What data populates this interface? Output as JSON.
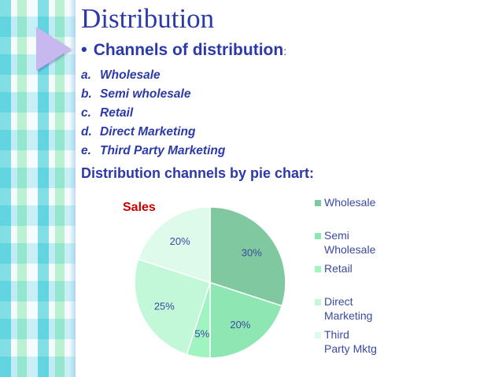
{
  "title": "Distribution",
  "subheading": {
    "bullet": "•",
    "text": "Channels of distribution",
    "suffix": ":"
  },
  "channels": [
    {
      "mark": "a.",
      "label": "Wholesale"
    },
    {
      "mark": "b.",
      "label": "Semi wholesale"
    },
    {
      "mark": "c.",
      "label": "Retail"
    },
    {
      "mark": "d.",
      "label": "Direct Marketing"
    },
    {
      "mark": "e.",
      "label": "Third Party Marketing"
    }
  ],
  "pie_heading": "Distribution channels by pie chart:",
  "colors": {
    "text_blue": "#2b3aa8",
    "chart_title_red": "#cc0000",
    "label_blue": "#3a4aa0",
    "slice_border": "#ffffff"
  },
  "chart_data": {
    "type": "pie",
    "title": "Sales",
    "legend_position": "right",
    "slices": [
      {
        "name": "Wholesale",
        "legend_lines": [
          "Wholesale"
        ],
        "value": 30,
        "label": "30%",
        "color": "#80c8a0"
      },
      {
        "name": "Semi Wholesale",
        "legend_lines": [
          "Semi",
          "Wholesale"
        ],
        "value": 20,
        "label": "20%",
        "color": "#8ee6b2"
      },
      {
        "name": "Retail",
        "legend_lines": [
          "Retail"
        ],
        "value": 5,
        "label": "5%",
        "color": "#9ff4c0"
      },
      {
        "name": "Direct Marketing",
        "legend_lines": [
          "Direct",
          "Marketing"
        ],
        "value": 25,
        "label": "25%",
        "color": "#c2f7d8"
      },
      {
        "name": "Third Party Mktg",
        "legend_lines": [
          "Third",
          "Party Mktg"
        ],
        "value": 20,
        "label": "20%",
        "color": "#defaea"
      }
    ]
  }
}
